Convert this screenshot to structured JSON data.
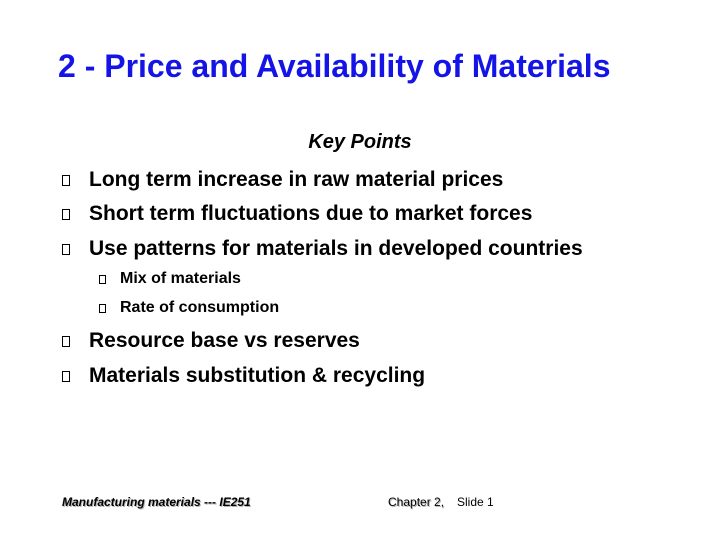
{
  "slide": {
    "title": "2 - Price and Availability of Materials",
    "subtitle": "Key Points",
    "bullets": [
      "Long term increase in raw material prices",
      "Short term fluctuations due to market forces",
      "Use patterns for materials in developed countries",
      "Resource base vs reserves",
      "Materials substitution & recycling"
    ],
    "sub_bullets": [
      "Mix of materials",
      "Rate of consumption"
    ],
    "bullet_glyph": "hollow-square-icon"
  },
  "footer": {
    "course": "Manufacturing materials  --- IE251",
    "chapter": "Chapter 2,",
    "slide_number": "Slide 1"
  },
  "colors": {
    "title": "#1414e6",
    "text": "#000000",
    "background": "#ffffff"
  }
}
